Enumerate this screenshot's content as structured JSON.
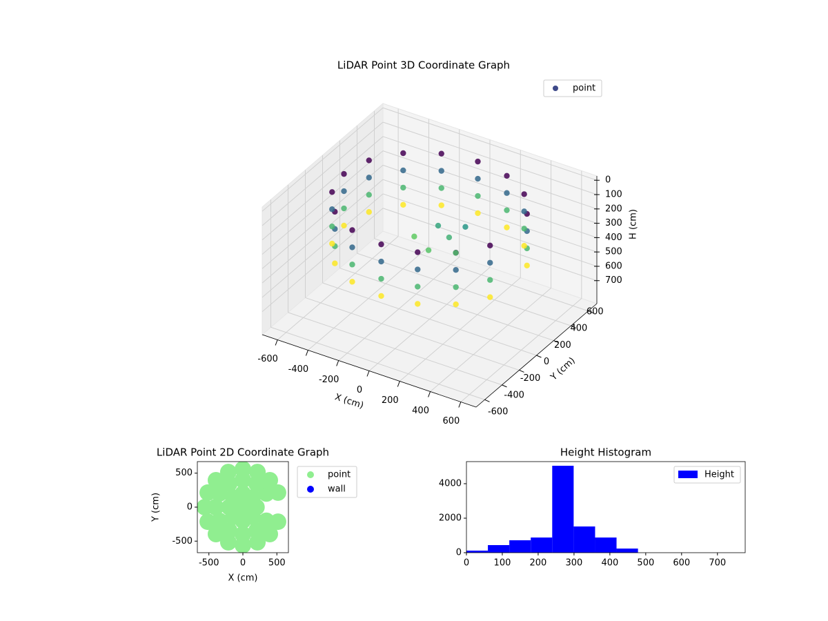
{
  "chart_data": [
    {
      "type": "scatter3d",
      "title": "LiDAR Point 3D Coordinate Graph",
      "xlabel": "X (cm)",
      "ylabel": "Y (cm)",
      "zlabel": "H (cm)",
      "series": [
        {
          "name": "point",
          "color": "#3e4a89",
          "x": [
            517,
            396,
            214,
            0,
            -214,
            -396,
            -517,
            -560,
            -517,
            -396,
            -214,
            0,
            214,
            396,
            517,
            517,
            396,
            214,
            0,
            -214,
            -396,
            -517,
            -560,
            -517,
            -396,
            -214,
            0,
            214,
            396,
            517,
            517,
            396,
            214,
            0,
            -214,
            -396,
            -517,
            -560,
            -517,
            -396,
            -214,
            0,
            214,
            396,
            517,
            517,
            396,
            214,
            0,
            -214,
            -396,
            -517,
            -560,
            -517,
            -396,
            -214,
            0,
            214,
            396,
            517,
            100,
            200,
            0,
            -100,
            150,
            50
          ],
          "y": [
            214,
            396,
            517,
            560,
            517,
            396,
            214,
            0,
            -214,
            -396,
            -517,
            -560,
            -517,
            -396,
            -214,
            214,
            396,
            517,
            560,
            517,
            396,
            214,
            0,
            -214,
            -396,
            -517,
            -560,
            -517,
            -396,
            -214,
            214,
            396,
            517,
            560,
            517,
            396,
            214,
            0,
            -214,
            -396,
            -517,
            -560,
            -517,
            -396,
            -214,
            214,
            396,
            517,
            560,
            517,
            396,
            214,
            0,
            -214,
            -396,
            -517,
            -560,
            -517,
            -396,
            -214,
            50,
            -50,
            100,
            0,
            150,
            -100
          ],
          "z": [
            50,
            50,
            50,
            50,
            50,
            50,
            50,
            50,
            50,
            50,
            50,
            50,
            50,
            50,
            50,
            170,
            170,
            170,
            170,
            170,
            170,
            170,
            170,
            170,
            170,
            170,
            170,
            170,
            170,
            170,
            290,
            290,
            290,
            290,
            290,
            290,
            290,
            290,
            290,
            290,
            290,
            290,
            290,
            290,
            290,
            410,
            410,
            410,
            410,
            410,
            410,
            410,
            410,
            410,
            410,
            410,
            410,
            410,
            410,
            410,
            280,
            300,
            260,
            320,
            240,
            310
          ]
        }
      ],
      "cmap": [
        "#440154",
        "#3b528b",
        "#21918c",
        "#5ec962",
        "#fde725"
      ],
      "xlim": [
        -700,
        700
      ],
      "ylim": [
        -700,
        700
      ],
      "zlim": [
        860,
        -30
      ],
      "xticks": [
        -600,
        -400,
        -200,
        0,
        200,
        400,
        600
      ],
      "yticks": [
        -600,
        -400,
        -200,
        0,
        200,
        400,
        600
      ],
      "zticks": [
        0,
        100,
        200,
        300,
        400,
        500,
        600,
        700
      ],
      "grid": true,
      "legend": "upper right"
    },
    {
      "type": "scatter",
      "title": "LiDAR Point 2D Coordinate Graph",
      "xlabel": "X (cm)",
      "ylabel": "Y (cm)",
      "series": [
        {
          "name": "point",
          "color": "#90ee90",
          "x": [
            0,
            200,
            141,
            0,
            -141,
            -200,
            -141,
            0,
            141,
            346,
            200,
            0,
            -200,
            -346,
            -400,
            -346,
            -200,
            0,
            200,
            346,
            517,
            396,
            214,
            0,
            -214,
            -396,
            -517,
            -560,
            -517,
            -396,
            -214,
            0,
            214,
            396,
            517
          ],
          "y": [
            0,
            0,
            141,
            200,
            141,
            0,
            -141,
            -200,
            -141,
            200,
            346,
            400,
            346,
            200,
            0,
            -200,
            -346,
            -400,
            -346,
            -200,
            214,
            396,
            517,
            560,
            517,
            396,
            214,
            0,
            -214,
            -396,
            -517,
            -560,
            -517,
            -396,
            -214
          ]
        },
        {
          "name": "wall",
          "color": "#0000ff",
          "x": [],
          "y": []
        }
      ],
      "xlim": [
        -670,
        670
      ],
      "ylim": [
        -670,
        670
      ],
      "xticks": [
        -500,
        0,
        500
      ],
      "yticks": [
        -500,
        0,
        500
      ],
      "legend": "outside upper right"
    },
    {
      "type": "histogram",
      "title": "Height Histogram",
      "bins": [
        0,
        59.8,
        119.6,
        179.4,
        239.2,
        299,
        358.8,
        418.6,
        478.4,
        538.2,
        598,
        657.8,
        717.6,
        777.4
      ],
      "series": [
        {
          "name": "Height",
          "color": "#0000ff",
          "values": [
            120,
            440,
            720,
            880,
            5040,
            1520,
            880,
            240,
            0,
            0,
            0,
            0,
            0
          ]
        }
      ],
      "xlim": [
        0,
        777.4
      ],
      "ylim": [
        0,
        5280
      ],
      "xticks": [
        0,
        100,
        200,
        300,
        400,
        500,
        600,
        700
      ],
      "yticks": [
        0,
        2000,
        4000
      ],
      "legend": "upper right"
    }
  ]
}
